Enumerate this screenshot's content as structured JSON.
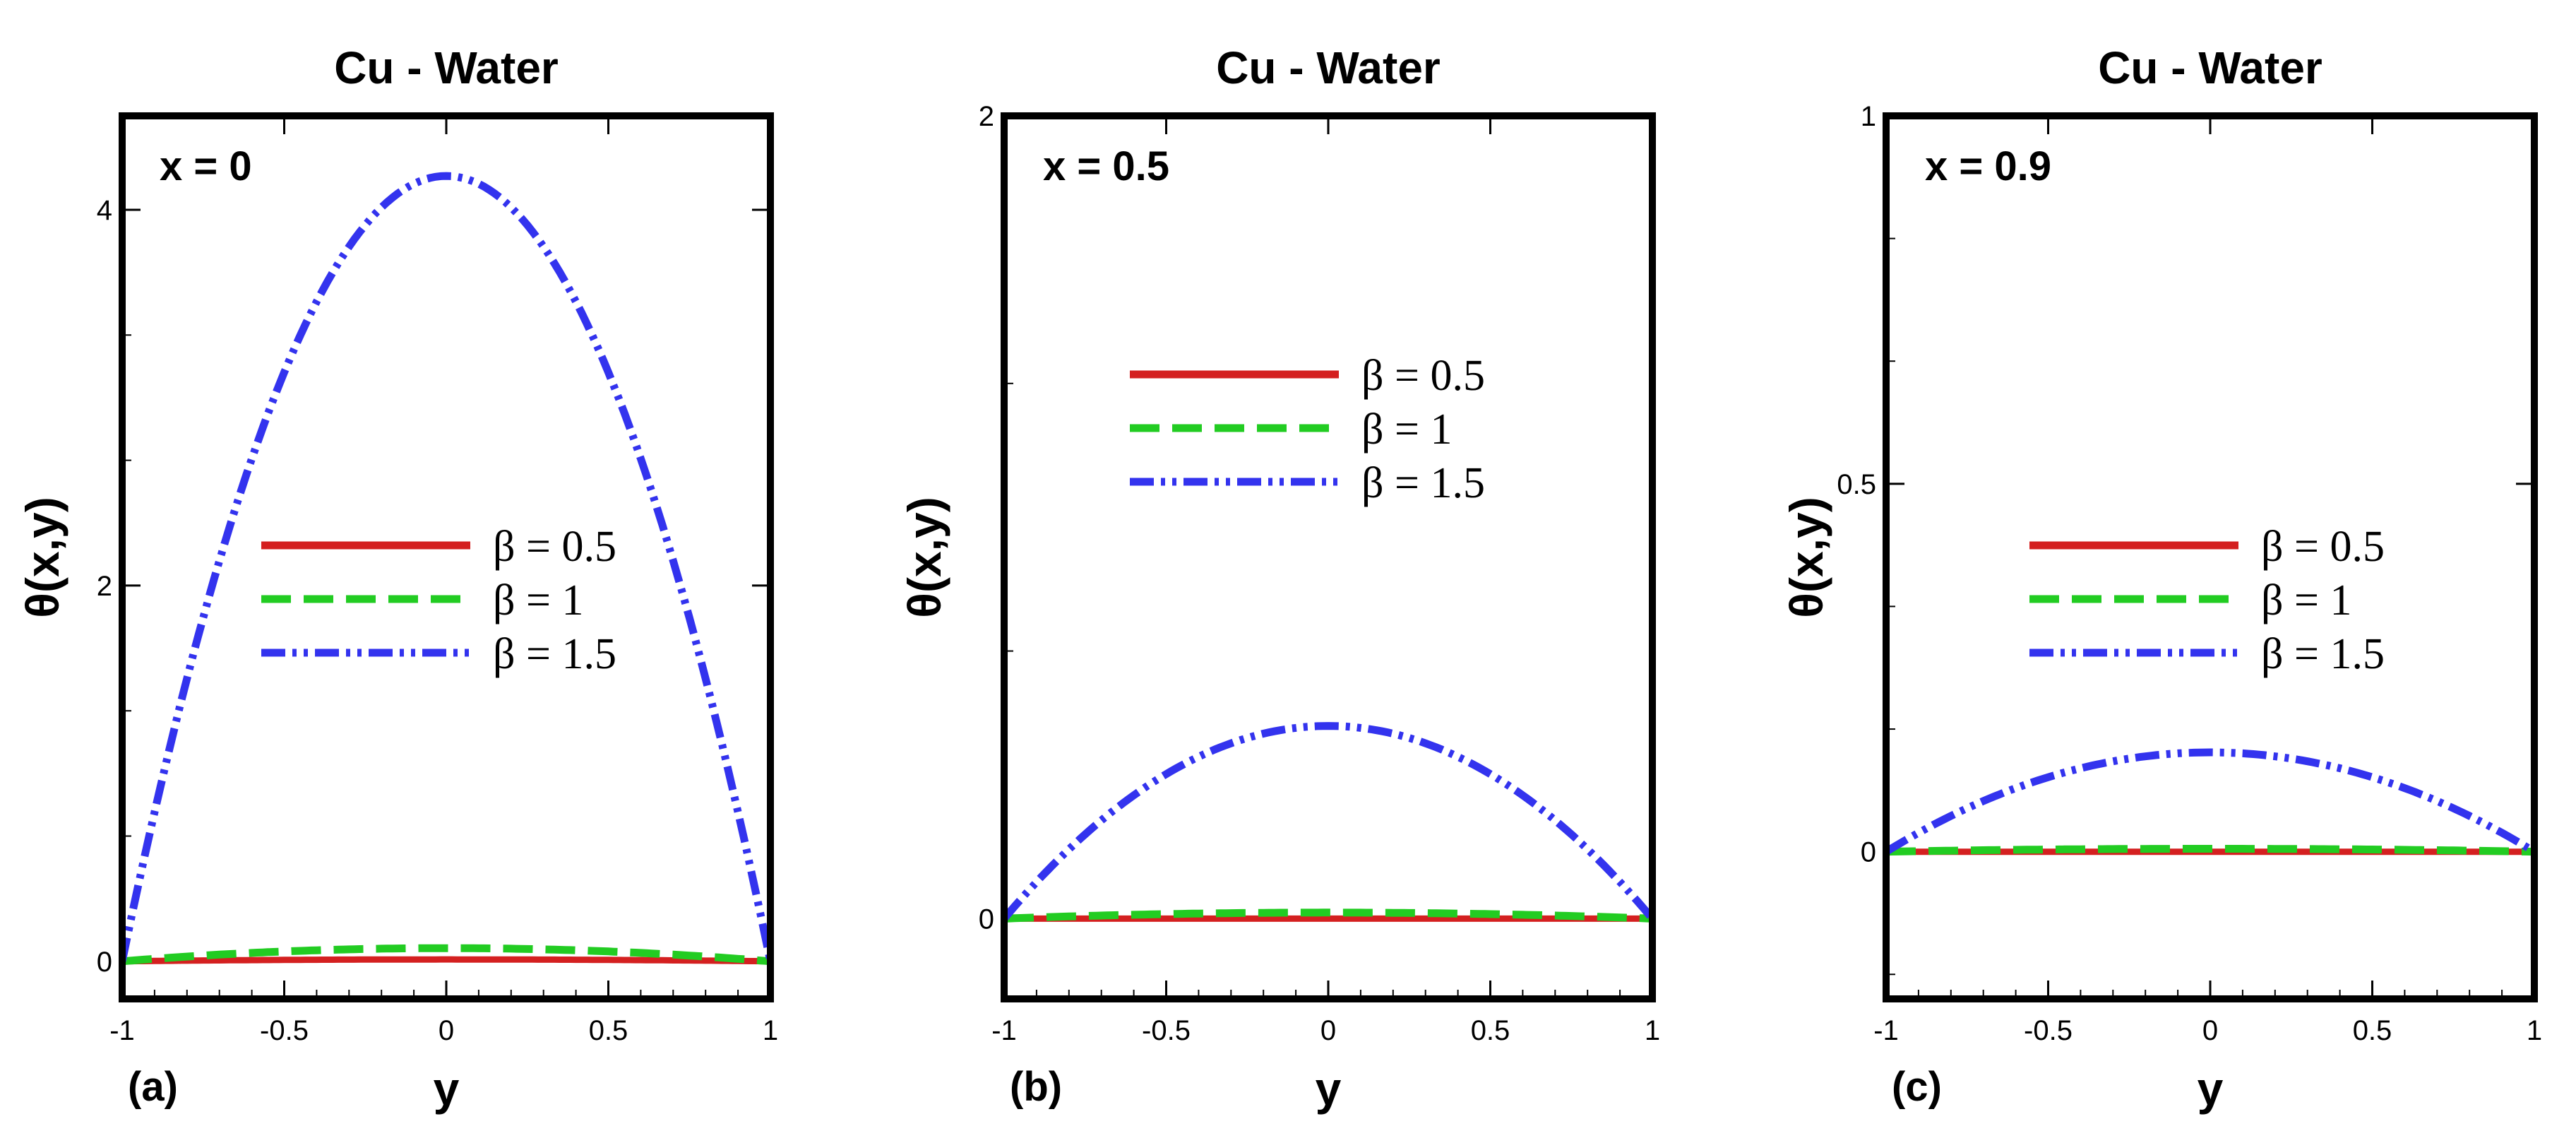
{
  "chart_data": [
    {
      "type": "line",
      "panel_label": "(a)",
      "title": "Cu - Water",
      "annotation": "x = 0",
      "xlabel": "y",
      "ylabel": "θ(x,y)",
      "xlim": [
        -1,
        1
      ],
      "ylim": [
        -0.2,
        4.5
      ],
      "xticks": [
        -1,
        -0.5,
        0,
        0.5,
        1
      ],
      "xtick_labels": [
        "-1",
        "-0.5",
        "0",
        "0.5",
        "1"
      ],
      "yticks": [
        0,
        2,
        4
      ],
      "ytick_labels": [
        "0",
        "2",
        "4"
      ],
      "legend_position": "center",
      "series": [
        {
          "name": "β = 0.5",
          "color": "#d42020",
          "style": "solid",
          "peak": 0.01
        },
        {
          "name": "β = 1",
          "color": "#22cc22",
          "style": "dashed",
          "peak": 0.07
        },
        {
          "name": "β = 1.5",
          "color": "#3333ee",
          "style": "dash-dot-dot",
          "peak": 4.18
        }
      ]
    },
    {
      "type": "line",
      "panel_label": "(b)",
      "title": "Cu - Water",
      "annotation": "x = 0.5",
      "xlabel": "y",
      "ylabel": "θ(x,y)",
      "xlim": [
        -1,
        1
      ],
      "ylim": [
        -0.2,
        2
      ],
      "xticks": [
        -1,
        -0.5,
        0,
        0.5,
        1
      ],
      "xtick_labels": [
        "-1",
        "-0.5",
        "0",
        "0.5",
        "1"
      ],
      "yticks": [
        0,
        2
      ],
      "ytick_labels": [
        "0",
        "2"
      ],
      "legend_position": "upper-center",
      "series": [
        {
          "name": "β = 0.5",
          "color": "#d42020",
          "style": "solid",
          "peak": 0.0
        },
        {
          "name": "β = 1",
          "color": "#22cc22",
          "style": "dashed",
          "peak": 0.015
        },
        {
          "name": "β = 1.5",
          "color": "#3333ee",
          "style": "dash-dot-dot",
          "peak": 0.48
        }
      ]
    },
    {
      "type": "line",
      "panel_label": "(c)",
      "title": "Cu - Water",
      "annotation": "x = 0.9",
      "xlabel": "y",
      "ylabel": "θ(x,y)",
      "xlim": [
        -1,
        1
      ],
      "ylim": [
        -0.2,
        1
      ],
      "xticks": [
        -1,
        -0.5,
        0,
        0.5,
        1
      ],
      "xtick_labels": [
        "-1",
        "-0.5",
        "0",
        "0.5",
        "1"
      ],
      "yticks": [
        0,
        0.5,
        1
      ],
      "ytick_labels": [
        "0",
        "0.5",
        "1"
      ],
      "legend_position": "center",
      "series": [
        {
          "name": "β = 0.5",
          "color": "#d42020",
          "style": "solid",
          "peak": 0.0
        },
        {
          "name": "β = 1",
          "color": "#22cc22",
          "style": "dashed",
          "peak": 0.004
        },
        {
          "name": "β = 1.5",
          "color": "#3333ee",
          "style": "dash-dot-dot",
          "peak": 0.135
        }
      ]
    }
  ]
}
